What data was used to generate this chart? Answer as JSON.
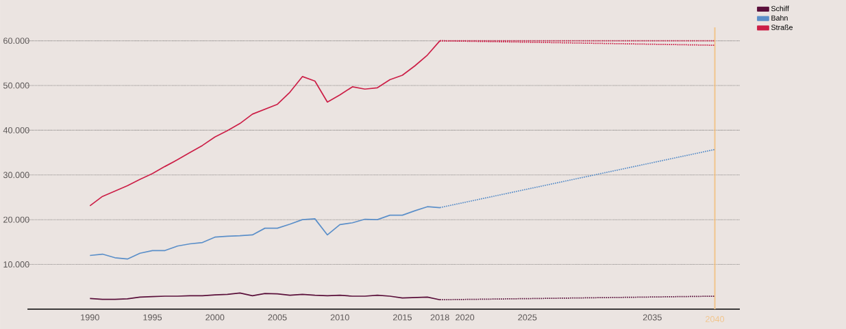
{
  "chart_data": {
    "type": "line",
    "xlim": [
      1985,
      2042
    ],
    "xticks": [
      1990,
      1995,
      2000,
      2005,
      2010,
      2015,
      2018,
      2020,
      2025,
      2035
    ],
    "ylim": [
      0,
      63000
    ],
    "yticks": [
      {
        "value": 10000,
        "label": "10.000"
      },
      {
        "value": 20000,
        "label": "20.000"
      },
      {
        "value": 30000,
        "label": "30.000"
      },
      {
        "value": 40000,
        "label": "40.000"
      },
      {
        "value": 50000,
        "label": "50.000"
      },
      {
        "value": 60000,
        "label": "60.000"
      }
    ],
    "grid": "y",
    "legend": "top right",
    "marker": "none",
    "ref_lines": [
      {
        "axis": "x",
        "value": 2040,
        "label": "2040",
        "color": "#f2c58c"
      }
    ],
    "series": [
      {
        "name": "Schiff",
        "color": "#5a0f3a",
        "line_style": "solid",
        "x": [
          1990,
          1991,
          1992,
          1993,
          1994,
          1995,
          1996,
          1997,
          1998,
          1999,
          2000,
          2001,
          2002,
          2003,
          2004,
          2005,
          2006,
          2007,
          2008,
          2009,
          2010,
          2011,
          2012,
          2013,
          2014,
          2015,
          2016,
          2017,
          2018
        ],
        "values": [
          2400,
          2200,
          2200,
          2300,
          2700,
          2800,
          2900,
          2900,
          3000,
          3000,
          3200,
          3300,
          3600,
          3000,
          3500,
          3400,
          3100,
          3300,
          3100,
          3000,
          3100,
          2900,
          2900,
          3100,
          2900,
          2500,
          2600,
          2700,
          2100
        ]
      },
      {
        "name": "Bahn",
        "color": "#5b8fc9",
        "line_style": "solid",
        "x": [
          1990,
          1991,
          1992,
          1993,
          1994,
          1995,
          1996,
          1997,
          1998,
          1999,
          2000,
          2001,
          2002,
          2003,
          2004,
          2005,
          2006,
          2007,
          2008,
          2009,
          2010,
          2011,
          2012,
          2013,
          2014,
          2015,
          2016,
          2017,
          2018
        ],
        "values": [
          12000,
          12300,
          11500,
          11200,
          12500,
          13100,
          13100,
          14100,
          14600,
          14900,
          16100,
          16300,
          16400,
          16600,
          18100,
          18100,
          19000,
          20000,
          20200,
          16600,
          18900,
          19300,
          20100,
          20000,
          21000,
          21000,
          22000,
          22900,
          22700
        ]
      },
      {
        "name": "Straße",
        "color": "#cc1f47",
        "line_style": "solid",
        "x": [
          1990,
          1991,
          1992,
          1993,
          1994,
          1995,
          1996,
          1997,
          1998,
          1999,
          2000,
          2001,
          2002,
          2003,
          2004,
          2005,
          2006,
          2007,
          2008,
          2009,
          2010,
          2011,
          2012,
          2013,
          2014,
          2015,
          2016,
          2017,
          2018
        ],
        "values": [
          23100,
          25200,
          26400,
          27600,
          29000,
          30300,
          31900,
          33400,
          35000,
          36600,
          38500,
          39900,
          41500,
          43600,
          44700,
          45800,
          48500,
          52000,
          51000,
          46300,
          47900,
          49700,
          49200,
          49500,
          51300,
          52300,
          54400,
          56800,
          60000
        ]
      },
      {
        "color": "#5a0f3a",
        "line_style": "dotted",
        "x": [
          2018,
          2040
        ],
        "values": [
          2100,
          2900
        ]
      },
      {
        "color": "#5b8fc9",
        "line_style": "dotted",
        "x": [
          2018,
          2040
        ],
        "values": [
          22700,
          35700
        ]
      },
      {
        "color": "#cc1f47",
        "line_style": "dotted",
        "x": [
          2018,
          2040
        ],
        "values": [
          60000,
          60000
        ]
      },
      {
        "color": "#cc1f47",
        "line_style": "dotted",
        "x": [
          2018,
          2040
        ],
        "values": [
          60000,
          59000
        ]
      }
    ]
  }
}
